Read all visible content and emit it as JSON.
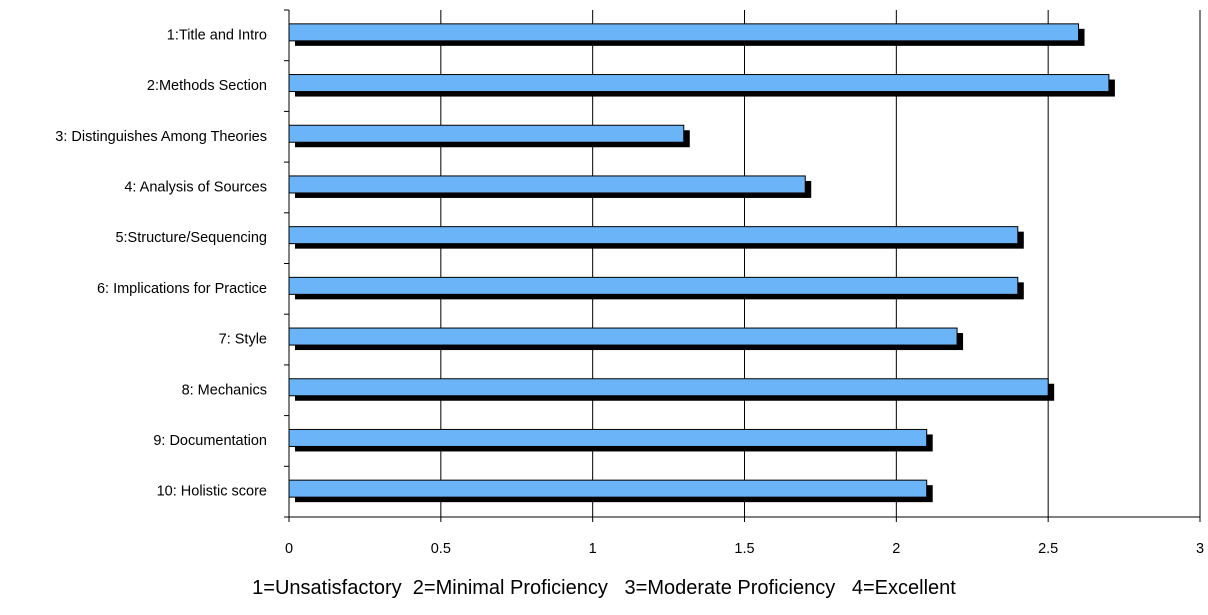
{
  "chart_data": {
    "type": "bar",
    "orientation": "horizontal",
    "categories": [
      "1:Title and Intro",
      "2:Methods Section",
      "3: Distinguishes Among Theories",
      "4: Analysis of Sources",
      "5:Structure/Sequencing",
      "6: Implications for Practice",
      "7: Style",
      "8: Mechanics",
      "9: Documentation",
      "10: Holistic score"
    ],
    "values": [
      2.6,
      2.7,
      1.3,
      1.7,
      2.4,
      2.4,
      2.2,
      2.5,
      2.1,
      2.1
    ],
    "xlim": [
      0,
      3
    ],
    "x_ticks": [
      "0",
      "0.5",
      "1",
      "1.5",
      "2",
      "2.5",
      "3"
    ],
    "grid": "vertical",
    "legend": null,
    "colors": {
      "bar": "#6cb4f8",
      "shadow": "#000000",
      "grid": "#000000"
    }
  },
  "footer_note": "1=Unsatisfactory  2=Minimal Proficiency   3=Moderate Proficiency   4=Excellent"
}
